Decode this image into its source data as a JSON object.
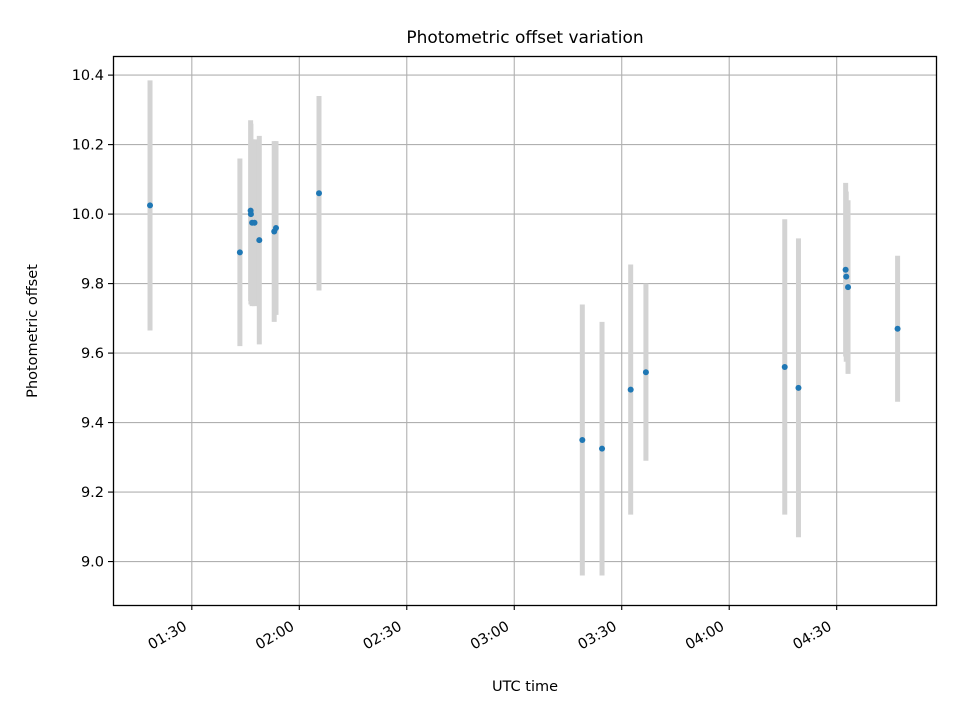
{
  "chart_data": {
    "type": "scatter",
    "title": "Photometric offset variation",
    "xlabel": "UTC time",
    "ylabel": "Photometric offset",
    "x_unit": "time (HH:MM, UTC)",
    "xlim": [
      "01:08",
      "04:58"
    ],
    "ylim": [
      8.875,
      10.455
    ],
    "x_ticks": [
      "01:30",
      "02:00",
      "02:30",
      "03:00",
      "03:30",
      "04:00",
      "04:30"
    ],
    "y_ticks": [
      "9.0",
      "9.2",
      "9.4",
      "9.6",
      "9.8",
      "10.0",
      "10.2",
      "10.4"
    ],
    "grid": true,
    "legend": "none",
    "point_color": "#1f77b4",
    "errorbar_color": "#d3d3d3",
    "points": [
      {
        "x": "01:18:20",
        "y": 10.025,
        "err": 0.36
      },
      {
        "x": "01:43:25",
        "y": 9.89,
        "err": 0.27
      },
      {
        "x": "01:46:25",
        "y": 10.01,
        "err": 0.26
      },
      {
        "x": "01:46:30",
        "y": 10.0,
        "err": 0.26
      },
      {
        "x": "01:46:50",
        "y": 9.975,
        "err": 0.24
      },
      {
        "x": "01:47:30",
        "y": 9.975,
        "err": 0.24
      },
      {
        "x": "01:48:50",
        "y": 9.925,
        "err": 0.3
      },
      {
        "x": "01:53:00",
        "y": 9.95,
        "err": 0.26
      },
      {
        "x": "01:53:30",
        "y": 9.96,
        "err": 0.25
      },
      {
        "x": "02:05:30",
        "y": 10.06,
        "err": 0.28
      },
      {
        "x": "03:19:00",
        "y": 9.35,
        "err": 0.39
      },
      {
        "x": "03:24:30",
        "y": 9.325,
        "err": 0.365
      },
      {
        "x": "03:32:30",
        "y": 9.495,
        "err": 0.36
      },
      {
        "x": "03:36:45",
        "y": 9.545,
        "err": 0.255
      },
      {
        "x": "04:15:30",
        "y": 9.56,
        "err": 0.425
      },
      {
        "x": "04:19:20",
        "y": 9.5,
        "err": 0.43
      },
      {
        "x": "04:32:30",
        "y": 9.84,
        "err": 0.25
      },
      {
        "x": "04:32:40",
        "y": 9.82,
        "err": 0.245
      },
      {
        "x": "04:33:10",
        "y": 9.79,
        "err": 0.25
      },
      {
        "x": "04:47:00",
        "y": 9.67,
        "err": 0.21
      }
    ]
  }
}
